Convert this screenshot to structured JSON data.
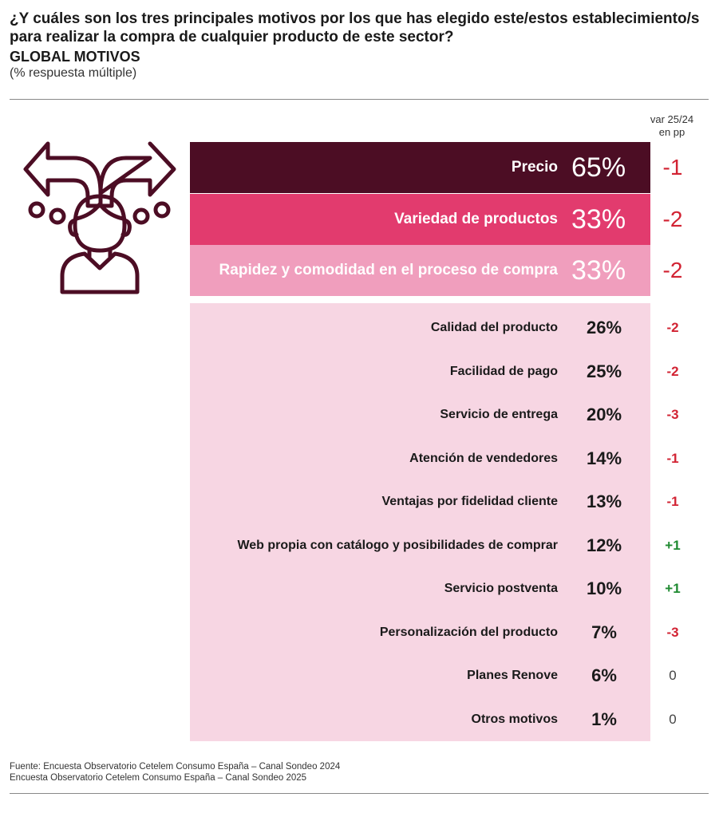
{
  "header": {
    "question_line1": "¿Y cuáles son los tres principales motivos por los que has elegido este/estos establecimiento/s",
    "question_line2": "para realizar la compra de cualquier producto de este sector?",
    "subtitle": "GLOBAL MOTIVOS",
    "note": "(% respuesta múltiple)"
  },
  "var_header": {
    "line1": "var 25/24",
    "line2": "en pp"
  },
  "colors": {
    "top1": "#4c0d24",
    "top2": "#e23b6e",
    "top3": "#f09ebd",
    "panel": "#f7d6e3",
    "negative": "#d22333",
    "positive": "#1e8a30",
    "neutral": "#444444",
    "icon": "#4c0d24"
  },
  "icon": "decision-person-arrows-icon",
  "chart_data": {
    "type": "table",
    "columns": [
      "motivo",
      "porcentaje",
      "var 25/24 en pp"
    ],
    "top_rows": [
      {
        "label": "Precio",
        "value_text": "65%",
        "value": 65,
        "var_text": "-1",
        "var": -1
      },
      {
        "label": "Variedad de productos",
        "value_text": "33%",
        "value": 33,
        "var_text": "-2",
        "var": -2
      },
      {
        "label": "Rapidez y comodidad en el proceso de compra",
        "value_text": "33%",
        "value": 33,
        "var_text": "-2",
        "var": -2
      }
    ],
    "rows": [
      {
        "label": "Calidad del producto",
        "value_text": "26%",
        "value": 26,
        "var_text": "-2",
        "var": -2
      },
      {
        "label": "Facilidad de pago",
        "value_text": "25%",
        "value": 25,
        "var_text": "-2",
        "var": -2
      },
      {
        "label": "Servicio de entrega",
        "value_text": "20%",
        "value": 20,
        "var_text": "-3",
        "var": -3
      },
      {
        "label": "Atención de vendedores",
        "value_text": "14%",
        "value": 14,
        "var_text": "-1",
        "var": -1
      },
      {
        "label": "Ventajas por fidelidad cliente",
        "value_text": "13%",
        "value": 13,
        "var_text": "-1",
        "var": -1
      },
      {
        "label": "Web propia con catálogo y posibilidades de comprar",
        "value_text": "12%",
        "value": 12,
        "var_text": "+1",
        "var": 1
      },
      {
        "label": "Servicio postventa",
        "value_text": "10%",
        "value": 10,
        "var_text": "+1",
        "var": 1
      },
      {
        "label": "Personalización del producto",
        "value_text": "7%",
        "value": 7,
        "var_text": "-3",
        "var": -3
      },
      {
        "label": "Planes Renove",
        "value_text": "6%",
        "value": 6,
        "var_text": "0",
        "var": 0
      },
      {
        "label": "Otros motivos",
        "value_text": "1%",
        "value": 1,
        "var_text": "0",
        "var": 0
      }
    ]
  },
  "footer": {
    "line1": "Fuente: Encuesta Observatorio Cetelem Consumo España – Canal Sondeo 2024",
    "line2": "Encuesta Observatorio Cetelem Consumo España – Canal Sondeo 2025"
  }
}
